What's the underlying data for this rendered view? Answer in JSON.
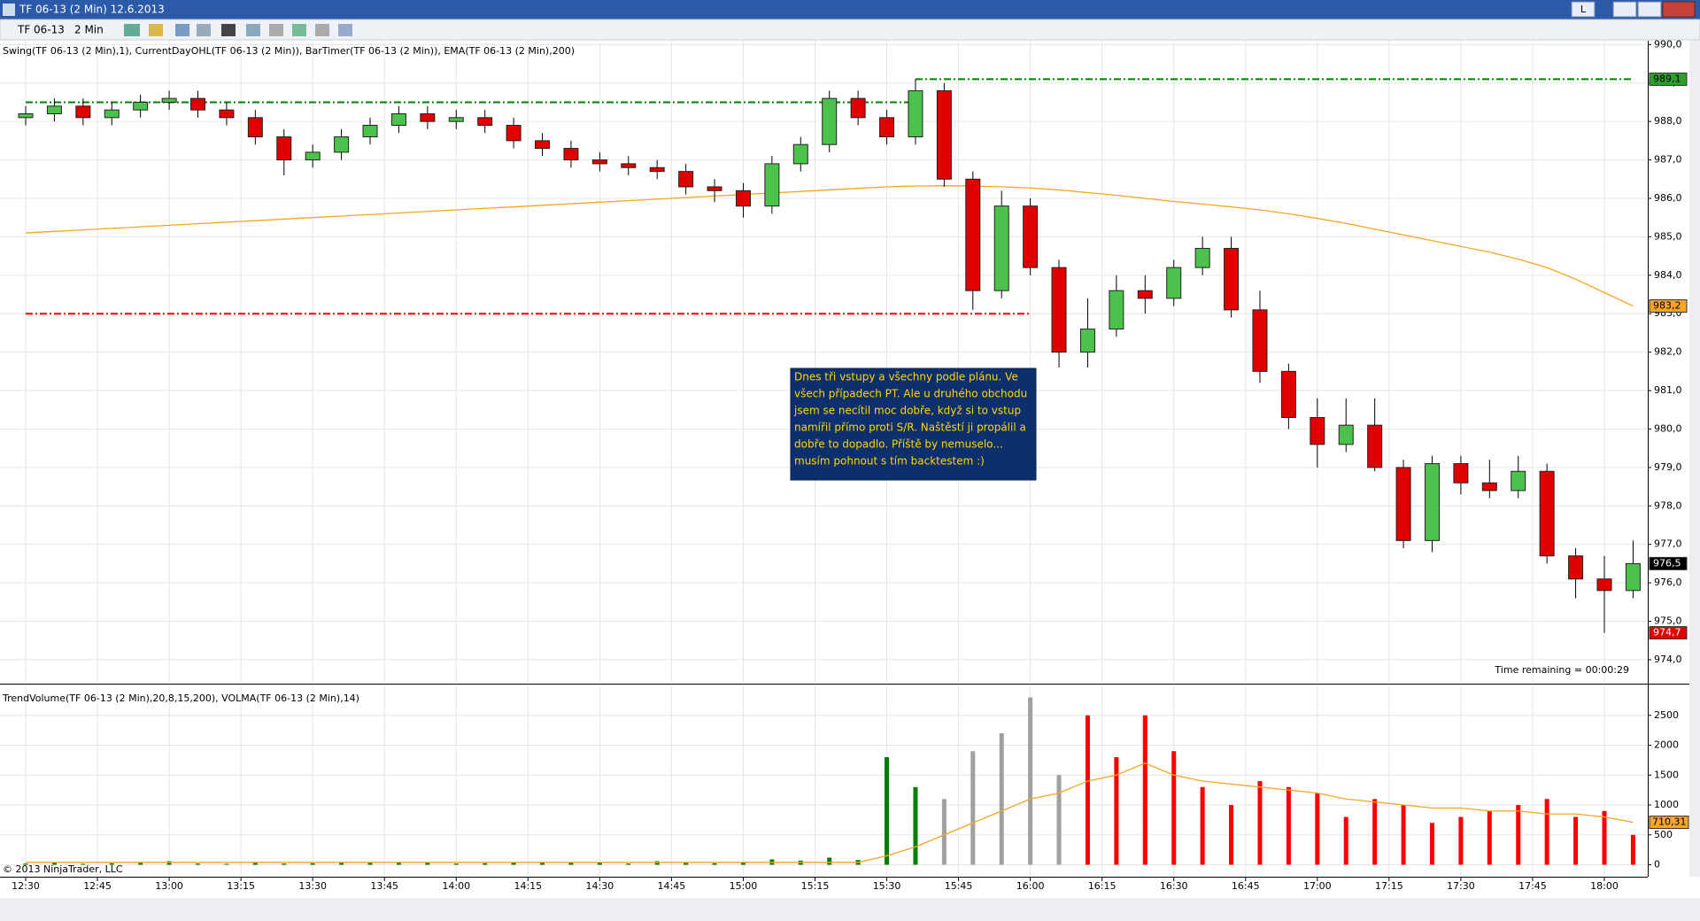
{
  "window": {
    "title": "TF 06-13 (2 Min)  12.6.2013",
    "instrument": "TF 06-13",
    "interval": "2 Min",
    "button": "L",
    "copyright": "© 2013 NinjaTrader, LLC"
  },
  "chart_data": [
    {
      "type": "candlestick",
      "title": "Swing(TF 06-13 (2 Min),1), CurrentDayOHL(TF 06-13 (2 Min)), BarTimer(TF 06-13 (2 Min)), EMA(TF 06-13 (2 Min),200)",
      "x": [
        "12:30",
        "12:36",
        "12:42",
        "12:48",
        "12:54",
        "13:00",
        "13:06",
        "13:12",
        "13:18",
        "13:24",
        "13:30",
        "13:36",
        "13:42",
        "13:48",
        "13:54",
        "14:00",
        "14:06",
        "14:12",
        "14:18",
        "14:24",
        "14:30",
        "14:36",
        "14:42",
        "14:48",
        "14:54",
        "15:00",
        "15:06",
        "15:12",
        "15:18",
        "15:24",
        "15:30",
        "15:36",
        "15:42",
        "15:48",
        "15:54",
        "16:00",
        "16:06",
        "16:12",
        "16:18",
        "16:24",
        "16:30",
        "16:36",
        "16:42",
        "16:48",
        "16:54",
        "17:00",
        "17:06",
        "17:12",
        "17:18",
        "17:24",
        "17:30",
        "17:36",
        "17:42",
        "17:48",
        "17:54",
        "18:00",
        "18:06"
      ],
      "open": [
        988.1,
        988.2,
        988.4,
        988.1,
        988.3,
        988.5,
        988.6,
        988.3,
        988.1,
        987.6,
        987.0,
        987.2,
        987.6,
        987.9,
        988.2,
        988.0,
        988.1,
        987.9,
        987.5,
        987.3,
        987.0,
        986.9,
        986.8,
        986.7,
        986.3,
        986.2,
        985.8,
        986.9,
        987.4,
        988.6,
        988.1,
        987.6,
        988.8,
        986.5,
        983.6,
        985.8,
        984.2,
        982.0,
        982.6,
        983.6,
        983.4,
        984.2,
        984.7,
        983.1,
        981.5,
        980.3,
        979.6,
        980.1,
        979.0,
        977.1,
        979.1,
        978.6,
        978.4,
        978.9,
        976.7,
        976.1,
        975.8
      ],
      "high": [
        988.4,
        988.6,
        988.6,
        988.5,
        988.7,
        988.8,
        988.8,
        988.5,
        988.3,
        987.8,
        987.4,
        987.8,
        988.1,
        988.4,
        988.4,
        988.3,
        988.3,
        988.1,
        987.7,
        987.5,
        987.2,
        987.1,
        987.0,
        986.9,
        986.5,
        986.4,
        987.1,
        987.6,
        988.8,
        988.8,
        988.3,
        989.1,
        989.0,
        986.7,
        986.2,
        986.0,
        984.4,
        983.4,
        984.0,
        984.0,
        984.4,
        985.0,
        985.0,
        983.6,
        981.7,
        980.8,
        980.8,
        980.8,
        979.2,
        979.3,
        979.3,
        979.2,
        979.3,
        979.1,
        976.9,
        976.7,
        977.1
      ],
      "low": [
        987.9,
        988.0,
        987.9,
        987.9,
        988.1,
        988.3,
        988.1,
        987.9,
        987.4,
        986.6,
        986.8,
        987.0,
        987.4,
        987.7,
        987.8,
        987.8,
        987.7,
        987.3,
        987.1,
        986.8,
        986.7,
        986.6,
        986.5,
        986.1,
        985.9,
        985.5,
        985.6,
        986.7,
        987.2,
        987.9,
        987.4,
        987.4,
        986.3,
        983.1,
        983.4,
        984.0,
        981.6,
        981.6,
        982.4,
        983.0,
        983.2,
        984.0,
        982.9,
        981.2,
        980.0,
        979.0,
        979.4,
        978.9,
        976.9,
        976.8,
        978.3,
        978.2,
        978.2,
        976.5,
        975.6,
        974.7,
        975.6
      ],
      "close": [
        988.2,
        988.4,
        988.1,
        988.3,
        988.5,
        988.6,
        988.3,
        988.1,
        987.6,
        987.0,
        987.2,
        987.6,
        987.9,
        988.2,
        988.0,
        988.1,
        987.9,
        987.5,
        987.3,
        987.0,
        986.9,
        986.8,
        986.7,
        986.3,
        986.2,
        985.8,
        986.9,
        987.4,
        988.6,
        988.1,
        987.6,
        988.8,
        986.5,
        983.6,
        985.8,
        984.2,
        982.0,
        982.6,
        983.6,
        983.4,
        984.2,
        984.7,
        983.1,
        981.5,
        980.3,
        979.6,
        980.1,
        979.0,
        977.1,
        979.1,
        978.6,
        978.4,
        978.9,
        976.7,
        976.1,
        975.8,
        976.5
      ],
      "up_color": "#4cc24c",
      "down_color": "#e00000",
      "ema": {
        "color": "#f5a623",
        "values": [
          985.1,
          985.14,
          985.18,
          985.22,
          985.26,
          985.3,
          985.34,
          985.38,
          985.42,
          985.46,
          985.5,
          985.54,
          985.58,
          985.62,
          985.66,
          985.7,
          985.74,
          985.78,
          985.82,
          985.86,
          985.9,
          985.94,
          985.98,
          986.02,
          986.06,
          986.1,
          986.14,
          986.18,
          986.22,
          986.26,
          986.3,
          986.32,
          986.33,
          986.32,
          986.3,
          986.27,
          986.22,
          986.15,
          986.08,
          986.0,
          985.92,
          985.85,
          985.78,
          985.7,
          985.6,
          985.48,
          985.35,
          985.2,
          985.05,
          984.9,
          984.75,
          984.6,
          984.42,
          984.2,
          983.9,
          983.55,
          983.2
        ]
      },
      "levels": [
        {
          "value": 988.5,
          "color": "#008000",
          "from": "12:30",
          "to": "15:36"
        },
        {
          "value": 989.1,
          "color": "#008000",
          "from": "15:36",
          "to": "18:06"
        },
        {
          "value": 983.0,
          "color": "#ff0000",
          "from": "12:30",
          "to": "16:00"
        }
      ],
      "price_labels": [
        {
          "value": 989.1,
          "label": "989,1",
          "color": "#2e9e2e"
        },
        {
          "value": 983.2,
          "label": "983,2",
          "color": "#f5a623"
        },
        {
          "value": 976.5,
          "label": "976,5",
          "color": "#000000"
        },
        {
          "value": 974.7,
          "label": "974,7",
          "color": "#e00000"
        }
      ],
      "ylim": [
        973.4,
        990.1
      ],
      "yticks": [
        {
          "value": 974,
          "label": "974,0"
        },
        {
          "value": 975,
          "label": "975,0"
        },
        {
          "value": 976,
          "label": "976,0"
        },
        {
          "value": 977,
          "label": "977,0"
        },
        {
          "value": 978,
          "label": "978,0"
        },
        {
          "value": 979,
          "label": "979,0"
        },
        {
          "value": 980,
          "label": "980,0"
        },
        {
          "value": 981,
          "label": "981,0"
        },
        {
          "value": 982,
          "label": "982,0"
        },
        {
          "value": 983,
          "label": "983,0"
        },
        {
          "value": 984,
          "label": "984,0"
        },
        {
          "value": 985,
          "label": "985,0"
        },
        {
          "value": 986,
          "label": "986,0"
        },
        {
          "value": 987,
          "label": "987,0"
        },
        {
          "value": 988,
          "label": "988,0"
        },
        {
          "value": 989,
          "label": "989,0"
        },
        {
          "value": 990,
          "label": "990,0"
        }
      ],
      "xticks": [
        "12:30",
        "12:45",
        "13:00",
        "13:15",
        "13:30",
        "13:45",
        "14:00",
        "14:15",
        "14:30",
        "14:45",
        "15:00",
        "15:15",
        "15:30",
        "15:45",
        "16:00",
        "16:15",
        "16:30",
        "16:45",
        "17:00",
        "17:15",
        "17:30",
        "17:45",
        "18:00"
      ],
      "grid": true,
      "annotation": [
        "Dnes tři vstupy a všechny podle plánu. Ve",
        "všech případech PT. Ale u druhého obchodu",
        "jsem se necítil moc dobře, když si to vstup",
        "namířil přímo proti S/R. Naštěstí ji propálil  a",
        "dobře to dopadlo. Příště by nemuselo...",
        "musím pohnout s tím backtestem  :)"
      ],
      "time_remaining": "Time remaining = 00:00:29"
    },
    {
      "type": "bar",
      "title": "TrendVolume(TF 06-13 (2 Min),20,8,15,200), VOLMA(TF 06-13 (2 Min),14)",
      "values": [
        20,
        30,
        15,
        25,
        40,
        60,
        20,
        15,
        30,
        20,
        25,
        40,
        30,
        50,
        35,
        20,
        25,
        30,
        45,
        40,
        30,
        20,
        60,
        35,
        25,
        40,
        90,
        70,
        120,
        80,
        1800,
        1300,
        1100,
        1900,
        2200,
        2800,
        1500,
        2500,
        1800,
        2500,
        1900,
        1300,
        1000,
        1400,
        1300,
        1200,
        800,
        1100,
        1000,
        700,
        800,
        900,
        1000,
        1100,
        800,
        900,
        500
      ],
      "colors": [
        "#008000",
        "#008000",
        "#008000",
        "#008000",
        "#008000",
        "#008000",
        "#008000",
        "#008000",
        "#008000",
        "#008000",
        "#008000",
        "#008000",
        "#008000",
        "#008000",
        "#008000",
        "#008000",
        "#008000",
        "#008000",
        "#008000",
        "#008000",
        "#008000",
        "#008000",
        "#008000",
        "#008000",
        "#008000",
        "#008000",
        "#008000",
        "#008000",
        "#008000",
        "#008000",
        "#008000",
        "#008000",
        "#a0a0a0",
        "#a0a0a0",
        "#a0a0a0",
        "#a0a0a0",
        "#a0a0a0",
        "#ff0000",
        "#ff0000",
        "#ff0000",
        "#ff0000",
        "#ff0000",
        "#ff0000",
        "#ff0000",
        "#ff0000",
        "#ff0000",
        "#ff0000",
        "#ff0000",
        "#ff0000",
        "#ff0000",
        "#ff0000",
        "#ff0000",
        "#ff0000",
        "#ff0000",
        "#ff0000",
        "#ff0000",
        "#ff0000"
      ],
      "volma": {
        "color": "#f5a623",
        "values": [
          40,
          40,
          40,
          40,
          40,
          40,
          40,
          40,
          40,
          40,
          40,
          40,
          40,
          40,
          40,
          40,
          40,
          40,
          40,
          40,
          40,
          40,
          40,
          40,
          40,
          40,
          40,
          40,
          40,
          40,
          150,
          300,
          500,
          700,
          900,
          1100,
          1200,
          1400,
          1500,
          1700,
          1500,
          1400,
          1350,
          1300,
          1250,
          1200,
          1100,
          1050,
          1000,
          950,
          950,
          900,
          900,
          850,
          850,
          800,
          710.31
        ],
        "last_label": "710,31"
      },
      "ylim": [
        -200,
        3000
      ],
      "yticks": [
        0,
        500,
        1000,
        1500,
        2000,
        2500
      ],
      "grid": true
    }
  ]
}
